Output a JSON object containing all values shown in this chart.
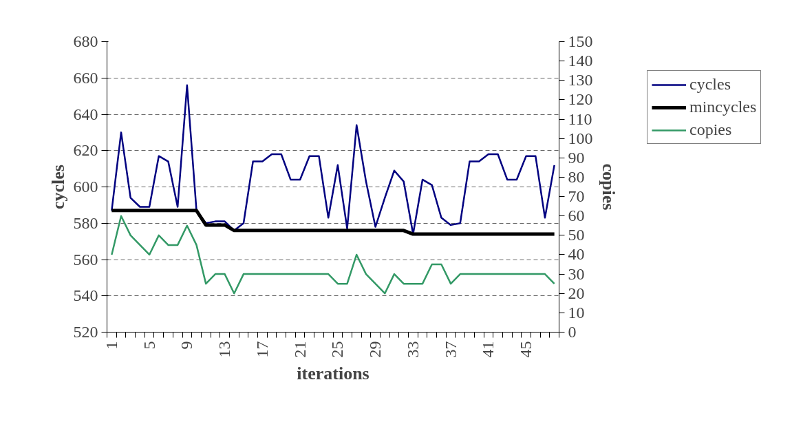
{
  "chart_data": {
    "type": "line",
    "xlabel": "iterations",
    "ylabel": "cycles",
    "y2label": "copies",
    "categories": [
      "1",
      null,
      null,
      null,
      "5",
      null,
      null,
      null,
      "9",
      null,
      null,
      null,
      "13",
      null,
      null,
      null,
      "17",
      null,
      null,
      null,
      "21",
      null,
      null,
      null,
      "25",
      null,
      null,
      null,
      "29",
      null,
      null,
      null,
      "33",
      null,
      null,
      null,
      "37",
      null,
      null,
      null,
      "41",
      null,
      null,
      null,
      "45",
      null,
      null,
      null
    ],
    "series": [
      {
        "name": "cycles",
        "color": "#000080",
        "values": [
          587,
          630,
          594,
          589,
          589,
          617,
          614,
          589,
          656,
          587,
          580,
          581,
          581,
          576,
          580,
          614,
          614,
          618,
          618,
          604,
          604,
          617,
          617,
          583,
          612,
          577,
          634,
          603,
          578,
          594,
          609,
          603,
          574,
          604,
          601,
          583,
          579,
          580,
          614,
          614,
          618,
          618,
          604,
          604,
          617,
          617,
          583,
          612
        ]
      },
      {
        "name": "mincycles",
        "color": "#000000",
        "values": [
          587,
          587,
          587,
          587,
          587,
          587,
          587,
          587,
          587,
          587,
          579,
          579,
          579,
          576,
          576,
          576,
          576,
          576,
          576,
          576,
          576,
          576,
          576,
          576,
          576,
          576,
          576,
          576,
          576,
          576,
          576,
          576,
          574,
          574,
          574,
          574,
          574,
          574,
          574,
          574,
          574,
          574,
          574,
          574,
          574,
          574,
          574,
          574
        ]
      },
      {
        "name": "copies",
        "color": "#339966",
        "axis": "y2",
        "values": [
          40,
          60,
          50,
          45,
          40,
          50,
          45,
          45,
          55,
          45,
          25,
          30,
          30,
          20,
          30,
          30,
          30,
          30,
          30,
          30,
          30,
          30,
          30,
          30,
          25,
          25,
          40,
          30,
          25,
          20,
          30,
          25,
          25,
          25,
          35,
          35,
          25,
          30,
          30,
          30,
          30,
          30,
          30,
          30,
          30,
          30,
          30,
          25
        ]
      }
    ],
    "ylim": [
      520,
      680
    ],
    "yticks": [
      520,
      540,
      560,
      580,
      600,
      620,
      640,
      660,
      680
    ],
    "y2lim": [
      0,
      150
    ],
    "y2ticks": [
      0,
      10,
      20,
      30,
      40,
      50,
      60,
      70,
      80,
      90,
      100,
      110,
      120,
      130,
      140,
      150
    ],
    "grid": "y",
    "legend": "right",
    "marker": "none",
    "line_style": "solid"
  }
}
